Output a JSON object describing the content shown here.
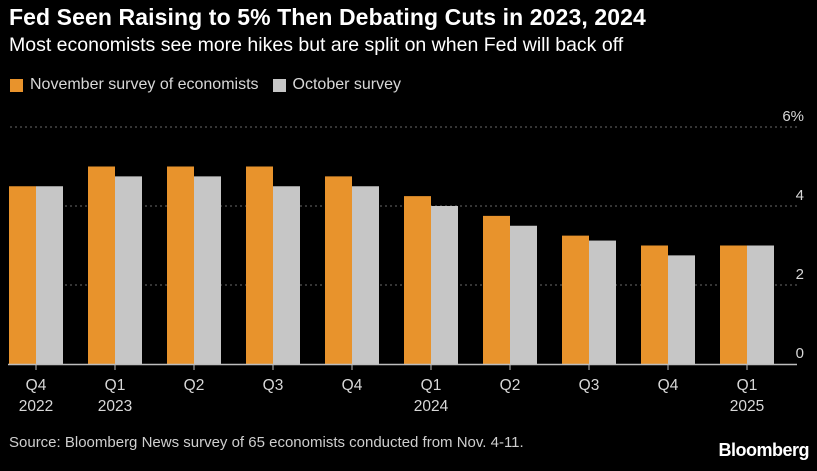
{
  "header": {
    "title": "Fed Seen Raising to 5% Then Debating Cuts in 2023, 2024",
    "subtitle": "Most economists see more hikes but are split on when Fed will back off"
  },
  "footer": {
    "source": "Source: Bloomberg News survey of 65 economists conducted from Nov. 4-11.",
    "brand": "Bloomberg"
  },
  "chart_data": {
    "type": "bar",
    "title": "Fed Seen Raising to 5% Then Debating Cuts in 2023, 2024",
    "subtitle": "Most economists see more hikes but are split on when Fed will back off",
    "categories": [
      "Q4 2022",
      "Q1 2023",
      "Q2",
      "Q3",
      "Q4",
      "Q1 2024",
      "Q2",
      "Q3",
      "Q4",
      "Q1 2025"
    ],
    "category_labels": [
      [
        "Q4",
        "2022"
      ],
      [
        "Q1",
        "2023"
      ],
      [
        "Q2"
      ],
      [
        "Q3"
      ],
      [
        "Q4"
      ],
      [
        "Q1",
        "2024"
      ],
      [
        "Q2"
      ],
      [
        "Q3"
      ],
      [
        "Q4"
      ],
      [
        "Q1",
        "2025"
      ]
    ],
    "series": [
      {
        "name": "November survey of economists",
        "color": "#e8932c",
        "values": [
          4.5,
          5.0,
          5.0,
          5.0,
          4.75,
          4.25,
          3.75,
          3.25,
          3.0,
          3.0
        ]
      },
      {
        "name": "October survey",
        "color": "#c6c6c6",
        "values": [
          4.5,
          4.75,
          4.75,
          4.5,
          4.5,
          4.0,
          3.5,
          3.125,
          2.75,
          3.0
        ]
      }
    ],
    "y_ticks": [
      {
        "value": 0,
        "label": "0"
      },
      {
        "value": 2,
        "label": "2"
      },
      {
        "value": 4,
        "label": "4"
      },
      {
        "value": 6,
        "label": "6%"
      }
    ],
    "ylim": [
      0,
      6
    ],
    "grid": true,
    "legend_position": "top-left",
    "y_axis_position": "right"
  }
}
